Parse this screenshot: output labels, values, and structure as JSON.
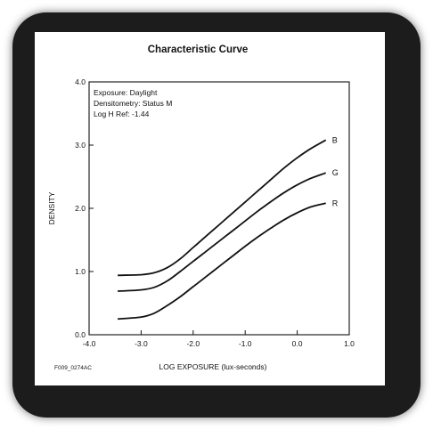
{
  "chart_data": {
    "type": "line",
    "title": "Characteristic Curve",
    "xlabel": "LOG EXPOSURE (lux-seconds)",
    "ylabel": "DENSITY",
    "xlim": [
      -4.0,
      1.0
    ],
    "ylim": [
      0.0,
      4.0
    ],
    "xticks": [
      "-4.0",
      "-3.0",
      "-2.0",
      "-1.0",
      "0.0",
      "1.0"
    ],
    "yticks": [
      "0.0",
      "1.0",
      "2.0",
      "3.0",
      "4.0"
    ],
    "annotations": [
      "Exposure: Daylight",
      "Densitometry: Status M",
      "Log H Ref: -1.44"
    ],
    "figure_id": "F009_0274AC",
    "grid": false,
    "series": [
      {
        "name": "B",
        "color": "#111111",
        "x": [
          -3.45,
          -3.0,
          -2.75,
          -2.5,
          -2.25,
          -2.0,
          -1.75,
          -1.5,
          -1.25,
          -1.0,
          -0.75,
          -0.5,
          -0.25,
          0.0,
          0.25,
          0.55
        ],
        "y": [
          0.94,
          0.95,
          0.98,
          1.06,
          1.2,
          1.38,
          1.56,
          1.74,
          1.92,
          2.1,
          2.28,
          2.46,
          2.64,
          2.8,
          2.94,
          3.08
        ]
      },
      {
        "name": "G",
        "color": "#111111",
        "x": [
          -3.45,
          -3.0,
          -2.75,
          -2.5,
          -2.25,
          -2.0,
          -1.75,
          -1.5,
          -1.25,
          -1.0,
          -0.75,
          -0.5,
          -0.25,
          0.0,
          0.25,
          0.55
        ],
        "y": [
          0.69,
          0.71,
          0.75,
          0.85,
          1.0,
          1.16,
          1.32,
          1.48,
          1.64,
          1.8,
          1.96,
          2.11,
          2.25,
          2.37,
          2.47,
          2.56
        ]
      },
      {
        "name": "R",
        "color": "#111111",
        "x": [
          -3.45,
          -3.0,
          -2.75,
          -2.5,
          -2.25,
          -2.0,
          -1.75,
          -1.5,
          -1.25,
          -1.0,
          -0.75,
          -0.5,
          -0.25,
          0.0,
          0.25,
          0.55
        ],
        "y": [
          0.25,
          0.28,
          0.34,
          0.46,
          0.6,
          0.76,
          0.92,
          1.08,
          1.24,
          1.4,
          1.55,
          1.69,
          1.82,
          1.93,
          2.02,
          2.08
        ]
      }
    ]
  }
}
